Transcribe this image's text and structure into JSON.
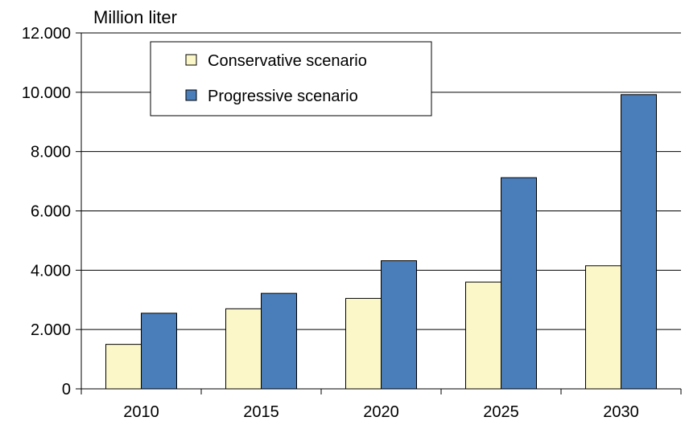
{
  "chart_data": {
    "type": "bar",
    "ylabel": "Million liter",
    "categories": [
      "2010",
      "2015",
      "2020",
      "2025",
      "2030"
    ],
    "series": [
      {
        "name": "Conservative scenario",
        "color": "#fbf7c8",
        "values": [
          1500,
          2700,
          3050,
          3600,
          4150
        ]
      },
      {
        "name": "Progressive scenario",
        "color": "#4a7ebb",
        "values": [
          2550,
          3220,
          4320,
          7120,
          9920
        ]
      }
    ],
    "ylim": [
      0,
      12000
    ],
    "yticks": [
      {
        "value": 0,
        "label": "0"
      },
      {
        "value": 2000,
        "label": "2.000"
      },
      {
        "value": 4000,
        "label": "4.000"
      },
      {
        "value": 6000,
        "label": "6.000"
      },
      {
        "value": 8000,
        "label": "8.000"
      },
      {
        "value": 10000,
        "label": "10.000"
      },
      {
        "value": 12000,
        "label": "12.000"
      }
    ],
    "grid": true,
    "legend_position": "top-left"
  }
}
